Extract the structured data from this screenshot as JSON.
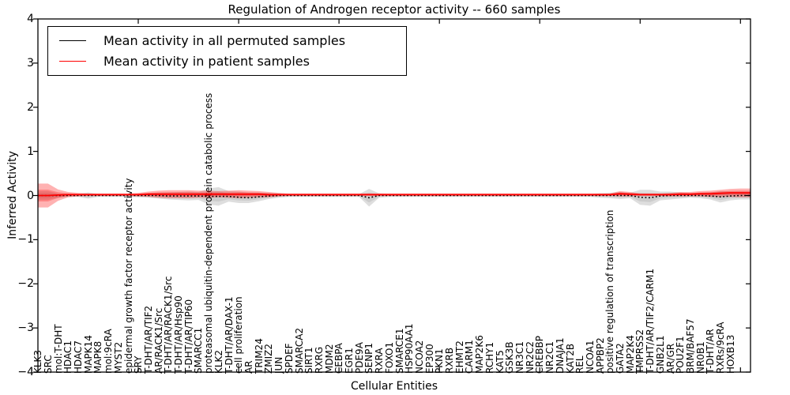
{
  "legend": {
    "items": [
      {
        "label": "Mean activity in all permuted samples",
        "color": "#000000"
      },
      {
        "label": "Mean activity in patient samples",
        "color": "#ff0000"
      }
    ]
  },
  "chart_data": {
    "type": "line",
    "title": "Regulation of Androgen receptor activity -- 660 samples",
    "xlabel": "Cellular Entities",
    "ylabel": "Inferred Activity",
    "ylim": [
      -4,
      4
    ],
    "ytick_labels": [
      "4",
      "3",
      "2",
      "1",
      "0",
      "−1",
      "−2",
      "−3",
      "−4"
    ],
    "xlim": [
      0,
      71
    ],
    "x_major_ticks": [
      10,
      20,
      30,
      40,
      50,
      60,
      70
    ],
    "grid": false,
    "legend_position": "upper left",
    "band_meaning": "shaded region around each mean line (uncertainty band) per cellular entity",
    "colors": {
      "permuted": "#000000",
      "patient": "#ff0000",
      "permuted_band": "#000000",
      "patient_band": "#ff0000"
    },
    "entities": [
      "KLK3",
      "SRC",
      "mol:T-DHT",
      "HDAC1",
      "HDAC7",
      "MAPK14",
      "MAPK8",
      "mol:9cRA",
      "MYST2",
      "epidermal growth factor receptor activity",
      "SRY",
      "T-DHT/AR/TIF2",
      "AR/RACK1/Src",
      "T-DHT/AR/RACK1/Src",
      "T-DHT/AR/Hsp90",
      "T-DHT/AR/TIP60",
      "SMARCC1",
      "proteasomal ubiquitin-dependent protein catabolic process",
      "KLK2",
      "T-DHT/AR/DAX-1",
      "cell proliferation",
      "AR",
      "TRIM24",
      "ZMIZ2",
      "JUN",
      "SPDEF",
      "SMARCA2",
      "SIRT1",
      "RXRG",
      "MDM2",
      "CEBPA",
      "EGR1",
      "PDE9A",
      "SENP1",
      "RXRA",
      "FOXO1",
      "SMARCE1",
      "HSP90AA1",
      "NCOA2",
      "EP300",
      "PKN1",
      "RXRB",
      "EHMT2",
      "CARM1",
      "MAP2K6",
      "RCHY1",
      "KAT5",
      "GSK3B",
      "NR3C1",
      "NR2C2",
      "CREBBP",
      "NR2C1",
      "DNAJA1",
      "KAT2B",
      "REL",
      "NCOA1",
      "APPBP2",
      "positive regulation of transcription",
      "GATA2",
      "MAP2K4",
      "TMPRSS2",
      "T-DHT/AR/TIF2/CARM1",
      "GNB2L1",
      "AR/GR",
      "POU2F1",
      "BRM/BAF57",
      "NR0B1",
      "T-DHT/AR",
      "RXRs/9cRA",
      "HOXB13"
    ],
    "series": [
      {
        "name": "Mean activity in all permuted samples",
        "color": "#000000",
        "line_style": "dotted",
        "mean": [
          0,
          0,
          0,
          0,
          0,
          0,
          0,
          0,
          0,
          0,
          0,
          0,
          -0.01,
          -0.01,
          -0.01,
          -0.01,
          -0.02,
          -0.02,
          -0.02,
          -0.04,
          -0.05,
          -0.03,
          -0.01,
          0,
          0,
          0,
          0,
          0,
          0,
          0,
          0,
          0,
          -0.05,
          0,
          0,
          0,
          0,
          0,
          0,
          0,
          0,
          0,
          0,
          0,
          0,
          0,
          0,
          0,
          0,
          0,
          0,
          0,
          0,
          0,
          0,
          0,
          0,
          0,
          0,
          -0.04,
          -0.05,
          -0.01,
          0,
          0,
          0,
          0,
          -0.01,
          -0.03,
          -0.01,
          0
        ],
        "band_halfwidth": [
          0.1,
          0.05,
          0.03,
          0.03,
          0.07,
          0.03,
          0.03,
          0.03,
          0.03,
          0.04,
          0.05,
          0.07,
          0.08,
          0.09,
          0.1,
          0.09,
          0.18,
          0.21,
          0.12,
          0.13,
          0.12,
          0.1,
          0.07,
          0.05,
          0.03,
          0.03,
          0.03,
          0.03,
          0.03,
          0.03,
          0.03,
          0.03,
          0.2,
          0.05,
          0.03,
          0.03,
          0.03,
          0.03,
          0.03,
          0.03,
          0.03,
          0.03,
          0.03,
          0.03,
          0.03,
          0.03,
          0.03,
          0.03,
          0.03,
          0.03,
          0.03,
          0.03,
          0.03,
          0.03,
          0.03,
          0.05,
          0.06,
          0.08,
          0.06,
          0.17,
          0.18,
          0.1,
          0.09,
          0.07,
          0.05,
          0.06,
          0.08,
          0.13,
          0.1,
          0.09
        ]
      },
      {
        "name": "Mean activity in patient samples",
        "color": "#ff0000",
        "line_style": "solid",
        "mean": [
          0,
          0.01,
          0.02,
          0.02,
          0.02,
          0.02,
          0.02,
          0.02,
          0.02,
          0.02,
          0.03,
          0.03,
          0.03,
          0.03,
          0.03,
          0.03,
          0.03,
          0.03,
          0.03,
          0.03,
          0.03,
          0.03,
          0.02,
          0.02,
          0.02,
          0.02,
          0.02,
          0.02,
          0.02,
          0.02,
          0.02,
          0.02,
          0.02,
          0.02,
          0.02,
          0.02,
          0.02,
          0.02,
          0.02,
          0.02,
          0.02,
          0.02,
          0.02,
          0.02,
          0.02,
          0.02,
          0.02,
          0.02,
          0.02,
          0.02,
          0.02,
          0.02,
          0.02,
          0.02,
          0.02,
          0.02,
          0.02,
          0.04,
          0.03,
          0.02,
          0.02,
          0.02,
          0.02,
          0.03,
          0.03,
          0.04,
          0.04,
          0.05,
          0.06,
          0.06
        ],
        "band_halfwidth": [
          0.27,
          0.13,
          0.06,
          0.04,
          0.03,
          0.03,
          0.03,
          0.03,
          0.03,
          0.04,
          0.06,
          0.08,
          0.09,
          0.09,
          0.09,
          0.08,
          0.08,
          0.07,
          0.08,
          0.09,
          0.08,
          0.07,
          0.06,
          0.04,
          0.03,
          0.03,
          0.03,
          0.03,
          0.03,
          0.03,
          0.03,
          0.03,
          0.03,
          0.03,
          0.03,
          0.03,
          0.03,
          0.03,
          0.03,
          0.03,
          0.03,
          0.03,
          0.03,
          0.03,
          0.03,
          0.03,
          0.03,
          0.03,
          0.03,
          0.03,
          0.03,
          0.03,
          0.03,
          0.03,
          0.03,
          0.03,
          0.03,
          0.06,
          0.05,
          0.03,
          0.03,
          0.03,
          0.04,
          0.05,
          0.05,
          0.06,
          0.07,
          0.08,
          0.09,
          0.1
        ]
      }
    ]
  }
}
